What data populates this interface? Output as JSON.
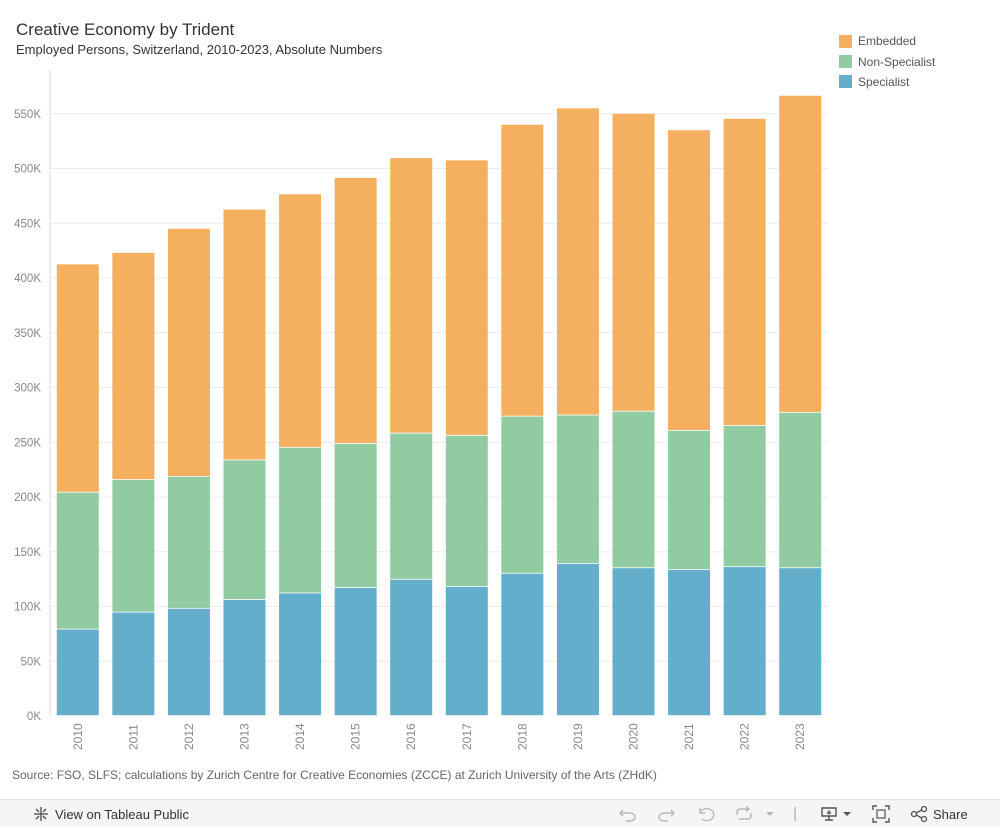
{
  "chart_data": {
    "type": "bar",
    "stacked": true,
    "title": "Creative Economy by Trident",
    "subtitle": "Employed Persons, Switzerland, 2010-2023, Absolute Numbers",
    "categories": [
      "2010",
      "2011",
      "2012",
      "2013",
      "2014",
      "2015",
      "2016",
      "2017",
      "2018",
      "2019",
      "2020",
      "2021",
      "2022",
      "2023"
    ],
    "series": [
      {
        "name": "Specialist",
        "color": "#63aecb",
        "values": [
          79000,
          94500,
          98000,
          106000,
          112000,
          117000,
          124500,
          118000,
          130000,
          139000,
          135000,
          133500,
          136000,
          135000
        ]
      },
      {
        "name": "Non-Specialist",
        "color": "#91cba1",
        "values": [
          125000,
          121000,
          120500,
          127500,
          133000,
          131500,
          133500,
          138000,
          143500,
          135500,
          143000,
          127000,
          129000,
          142000
        ]
      },
      {
        "name": "Embedded",
        "color": "#f4b05f",
        "values": [
          208500,
          207500,
          226500,
          229000,
          231500,
          243000,
          251500,
          251500,
          266500,
          280500,
          272000,
          274500,
          280500,
          289500
        ]
      }
    ],
    "legend_order": [
      "Embedded",
      "Non-Specialist",
      "Specialist"
    ],
    "ylim": [
      0,
      590000
    ],
    "yticks": [
      0,
      50000,
      100000,
      150000,
      200000,
      250000,
      300000,
      350000,
      400000,
      450000,
      500000,
      550000
    ],
    "ytick_labels": [
      "0K",
      "50K",
      "100K",
      "150K",
      "200K",
      "250K",
      "300K",
      "350K",
      "400K",
      "450K",
      "500K",
      "550K"
    ],
    "xlabel": "",
    "ylabel": "",
    "grid": true,
    "legend_position": "top-right"
  },
  "source": "Source: FSO, SLFS; calculations by Zurich Centre for Creative Economies (ZCCE) at Zurich University of the Arts (ZHdK)",
  "toolbar": {
    "view_label": "View on Tableau Public",
    "share_label": "Share"
  }
}
